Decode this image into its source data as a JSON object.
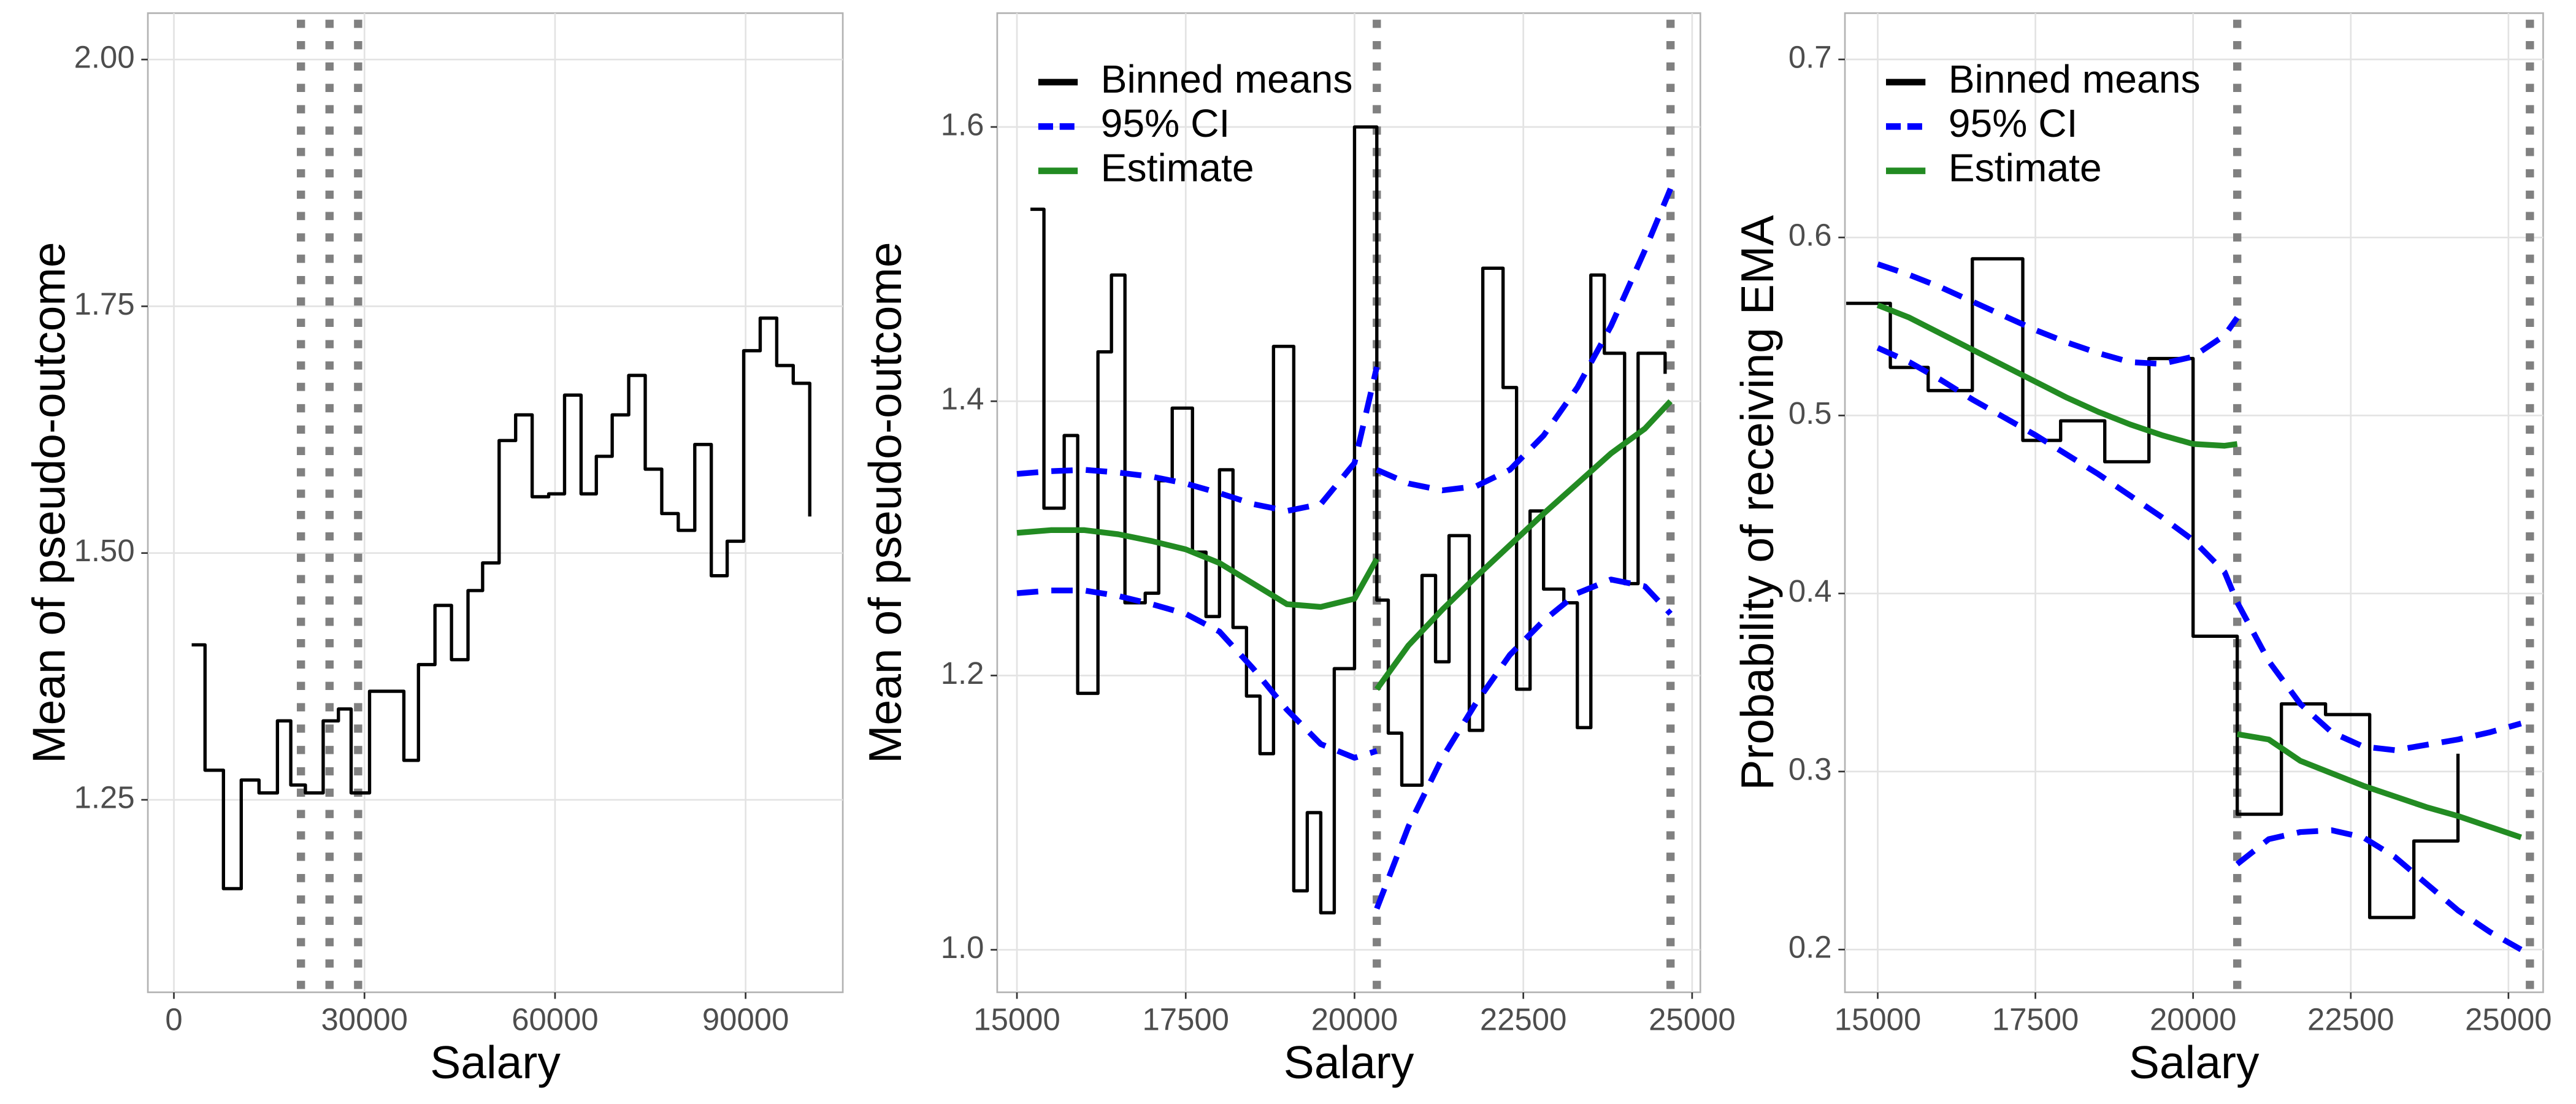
{
  "chart_data": [
    {
      "type": "line",
      "xlabel": "Salary",
      "ylabel": "Mean of pseudo-outcome",
      "xlim": [
        -4100,
        105300
      ],
      "xticks": [
        0,
        30000,
        60000,
        90000
      ],
      "ylim": [
        1.055,
        2.047
      ],
      "yticks": [
        1.25,
        {
          "value": 1.5,
          "label": "1.50"
        },
        1.75,
        {
          "value": 2,
          "label": "2.00"
        }
      ],
      "grid": true,
      "vlines": [
        20000,
        24500,
        29000
      ],
      "vline_color": "#808080",
      "series": [
        {
          "style": "step",
          "color": "#000000",
          "x": [
            2800,
            4900,
            7800,
            10600,
            13400,
            16300,
            18400,
            20700,
            23500,
            25900,
            27900,
            30800,
            33600,
            36200,
            38500,
            41100,
            43700,
            46300,
            48600,
            51200,
            53800,
            56400,
            59000,
            61500,
            64100,
            66500,
            69000,
            71600,
            74200,
            76800,
            79400,
            82000,
            84600,
            87100,
            89700,
            92300,
            94900,
            97500,
            100100
          ],
          "values": [
            1.407,
            1.28,
            1.16,
            1.27,
            1.257,
            1.33,
            1.265,
            1.257,
            1.33,
            1.342,
            1.257,
            1.36,
            1.36,
            1.29,
            1.387,
            1.447,
            1.392,
            1.462,
            1.49,
            1.614,
            1.64,
            1.557,
            1.56,
            1.66,
            1.56,
            1.598,
            1.64,
            1.68,
            1.585,
            1.54,
            1.523,
            1.61,
            1.477,
            1.512,
            1.705,
            1.738,
            1.69,
            1.672,
            1.537
          ]
        }
      ]
    },
    {
      "type": "line",
      "xlabel": "Salary",
      "ylabel": "Mean of pseudo-outcome",
      "xlim": [
        14708,
        25122
      ],
      "xticks": [
        15000,
        17500,
        20000,
        22500,
        25000
      ],
      "ylim": [
        0.969,
        1.683
      ],
      "yticks": [
        {
          "value": 1,
          "label": "1.0"
        },
        1.2,
        1.4,
        1.6
      ],
      "grid": true,
      "vlines": [
        20330,
        24680
      ],
      "vline_color": "#808080",
      "legend": "top-left",
      "series": [
        {
          "name": "Binned means",
          "style": "step",
          "color": "#000000",
          "x": [
            15200,
            15400,
            15700,
            15900,
            16200,
            16400,
            16600,
            16900,
            17100,
            17300,
            17600,
            17800,
            18000,
            18200,
            18400,
            18600,
            18800,
            19100,
            19300,
            19500,
            19700,
            20000,
            20330,
            20500,
            20700,
            21000,
            21200,
            21400,
            21700,
            21900,
            22200,
            22400,
            22600,
            22800,
            23100,
            23300,
            23500,
            23700,
            24000,
            24200,
            24600
          ],
          "values": [
            1.54,
            1.322,
            1.375,
            1.187,
            1.436,
            1.492,
            1.253,
            1.26,
            1.342,
            1.395,
            1.29,
            1.243,
            1.35,
            1.235,
            1.185,
            1.143,
            1.44,
            1.043,
            1.1,
            1.027,
            1.205,
            1.6,
            1.255,
            1.158,
            1.12,
            1.273,
            1.21,
            1.302,
            1.16,
            1.497,
            1.41,
            1.19,
            1.32,
            1.263,
            1.253,
            1.162,
            1.492,
            1.435,
            1.267,
            1.435,
            1.42
          ]
        },
        {
          "name": "95% CI",
          "style": "line",
          "dash": true,
          "color": "#0000ff",
          "x": [
            15000,
            15500,
            16000,
            16500,
            17000,
            17500,
            18000,
            18500,
            19000,
            19500,
            20000,
            20330,
            null,
            20330,
            20800,
            21300,
            21800,
            22300,
            22800,
            23300,
            23800,
            24300,
            24680
          ],
          "lower": [
            1.26,
            1.262,
            1.262,
            1.258,
            1.252,
            1.245,
            1.232,
            1.205,
            1.175,
            1.15,
            1.14,
            1.145,
            null,
            1.03,
            1.09,
            1.14,
            1.18,
            1.215,
            1.24,
            1.26,
            1.27,
            1.265,
            1.245
          ],
          "upper": [
            1.347,
            1.349,
            1.35,
            1.348,
            1.345,
            1.34,
            1.333,
            1.325,
            1.32,
            1.325,
            1.355,
            1.425,
            null,
            1.35,
            1.34,
            1.335,
            1.338,
            1.35,
            1.375,
            1.41,
            1.455,
            1.51,
            1.555
          ]
        },
        {
          "name": "Estimate",
          "style": "line",
          "color": "#228b22",
          "x": [
            15000,
            15500,
            16000,
            16500,
            17000,
            17500,
            18000,
            18500,
            19000,
            19500,
            20000,
            20330,
            null,
            20330,
            20800,
            21300,
            21800,
            22300,
            22800,
            23300,
            23800,
            24300,
            24680
          ],
          "values": [
            1.304,
            1.306,
            1.306,
            1.303,
            1.298,
            1.292,
            1.282,
            1.267,
            1.252,
            1.25,
            1.256,
            1.285,
            null,
            1.19,
            1.222,
            1.248,
            1.272,
            1.295,
            1.318,
            1.34,
            1.362,
            1.38,
            1.4
          ]
        }
      ]
    },
    {
      "type": "line",
      "xlabel": "Salary",
      "ylabel": "Probability of receiving EMA",
      "xlim": [
        14480,
        25550
      ],
      "xticks": [
        15000,
        17500,
        20000,
        22500,
        25000
      ],
      "ylim": [
        0.176,
        0.726
      ],
      "yticks": [
        0.2,
        0.3,
        0.4,
        0.5,
        0.6,
        0.7
      ],
      "grid": true,
      "vlines": [
        20700,
        25340
      ],
      "vline_color": "#808080",
      "legend": "top-left",
      "series": [
        {
          "name": "Binned means",
          "style": "step",
          "color": "#000000",
          "x": [
            14500,
            15200,
            15800,
            16500,
            17300,
            17900,
            18600,
            19300,
            20000,
            20700,
            21400,
            22100,
            22800,
            23500,
            24200
          ],
          "values": [
            0.563,
            0.527,
            0.514,
            0.588,
            0.486,
            0.497,
            0.474,
            0.532,
            0.376,
            0.276,
            0.338,
            0.332,
            0.218,
            0.261,
            0.31
          ]
        },
        {
          "name": "95% CI",
          "style": "line",
          "dash": true,
          "color": "#0000ff",
          "x": [
            15000,
            15500,
            16000,
            16500,
            17000,
            17500,
            18000,
            18500,
            19000,
            19500,
            20000,
            20500,
            20700,
            null,
            20700,
            21200,
            21700,
            22200,
            22700,
            23200,
            23700,
            24200,
            24700,
            25200
          ],
          "lower": [
            0.538,
            0.53,
            0.52,
            0.509,
            0.499,
            0.489,
            0.478,
            0.467,
            0.455,
            0.443,
            0.43,
            0.412,
            0.395,
            null,
            0.248,
            0.262,
            0.266,
            0.267,
            0.263,
            0.252,
            0.237,
            0.222,
            0.21,
            0.2
          ],
          "upper": [
            0.585,
            0.579,
            0.572,
            0.564,
            0.556,
            0.548,
            0.541,
            0.535,
            0.53,
            0.529,
            0.533,
            0.545,
            0.555,
            null,
            0.395,
            0.362,
            0.338,
            0.322,
            0.314,
            0.312,
            0.315,
            0.318,
            0.322,
            0.327
          ]
        },
        {
          "name": "Estimate",
          "style": "line",
          "color": "#228b22",
          "x": [
            15000,
            15500,
            16000,
            16500,
            17000,
            17500,
            18000,
            18500,
            19000,
            19500,
            20000,
            20500,
            20700,
            null,
            20700,
            21200,
            21700,
            22200,
            22700,
            23200,
            23700,
            24200,
            24700,
            25200
          ],
          "values": [
            0.562,
            0.555,
            0.546,
            0.537,
            0.528,
            0.519,
            0.51,
            0.502,
            0.495,
            0.489,
            0.484,
            0.483,
            0.484,
            null,
            0.321,
            0.318,
            0.306,
            0.299,
            0.292,
            0.286,
            0.28,
            0.275,
            0.269,
            0.263
          ]
        }
      ]
    }
  ]
}
